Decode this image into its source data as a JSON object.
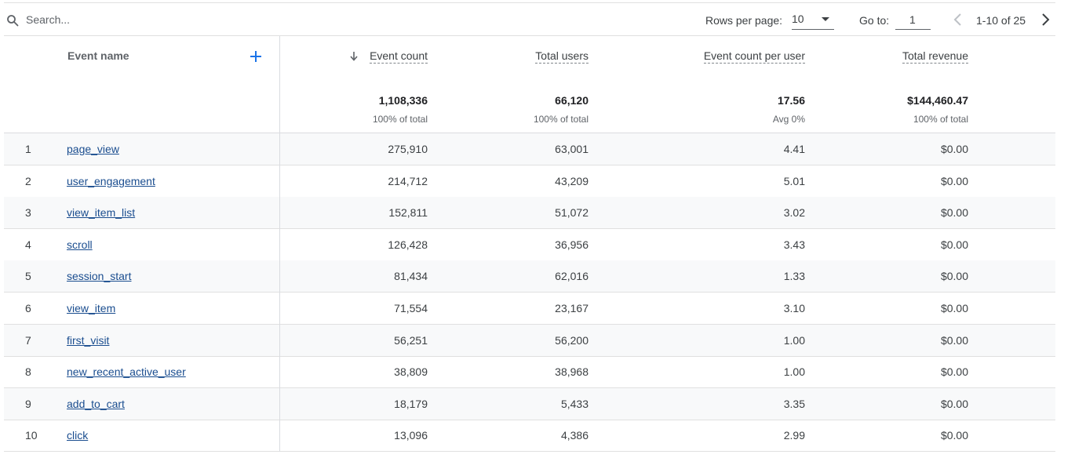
{
  "toolbar": {
    "search_placeholder": "Search...",
    "rows_per_page_label": "Rows per page:",
    "rows_per_page_value": "10",
    "goto_label": "Go to:",
    "goto_value": "1",
    "page_range": "1-10 of 25"
  },
  "columns": {
    "event_name": "Event name",
    "event_count": "Event count",
    "total_users": "Total users",
    "event_count_per_user": "Event count per user",
    "total_revenue": "Total revenue"
  },
  "totals": {
    "event_count": "1,108,336",
    "event_count_sub": "100% of total",
    "total_users": "66,120",
    "total_users_sub": "100% of total",
    "event_count_per_user": "17.56",
    "event_count_per_user_sub": "Avg 0%",
    "total_revenue": "$144,460.47",
    "total_revenue_sub": "100% of total"
  },
  "rows": [
    {
      "index": "1",
      "name": "page_view",
      "event_count": "275,910",
      "total_users": "63,001",
      "per_user": "4.41",
      "revenue": "$0.00"
    },
    {
      "index": "2",
      "name": "user_engagement",
      "event_count": "214,712",
      "total_users": "43,209",
      "per_user": "5.01",
      "revenue": "$0.00"
    },
    {
      "index": "3",
      "name": "view_item_list",
      "event_count": "152,811",
      "total_users": "51,072",
      "per_user": "3.02",
      "revenue": "$0.00"
    },
    {
      "index": "4",
      "name": "scroll",
      "event_count": "126,428",
      "total_users": "36,956",
      "per_user": "3.43",
      "revenue": "$0.00"
    },
    {
      "index": "5",
      "name": "session_start",
      "event_count": "81,434",
      "total_users": "62,016",
      "per_user": "1.33",
      "revenue": "$0.00"
    },
    {
      "index": "6",
      "name": "view_item",
      "event_count": "71,554",
      "total_users": "23,167",
      "per_user": "3.10",
      "revenue": "$0.00"
    },
    {
      "index": "7",
      "name": "first_visit",
      "event_count": "56,251",
      "total_users": "56,200",
      "per_user": "1.00",
      "revenue": "$0.00"
    },
    {
      "index": "8",
      "name": "new_recent_active_user",
      "event_count": "38,809",
      "total_users": "38,968",
      "per_user": "1.00",
      "revenue": "$0.00"
    },
    {
      "index": "9",
      "name": "add_to_cart",
      "event_count": "18,179",
      "total_users": "5,433",
      "per_user": "3.35",
      "revenue": "$0.00"
    },
    {
      "index": "10",
      "name": "click",
      "event_count": "13,096",
      "total_users": "4,386",
      "per_user": "2.99",
      "revenue": "$0.00"
    }
  ],
  "icons": {
    "search": "search-icon",
    "add": "plus-icon",
    "sort": "arrow-down-icon",
    "rows_dropdown": "caret-down-icon",
    "prev": "chevron-left-icon",
    "next": "chevron-right-icon"
  },
  "colors": {
    "link": "#1a4d8f",
    "accent": "#1a73e8",
    "row_alt": "#f8f9fa",
    "text": "#3c4043"
  }
}
